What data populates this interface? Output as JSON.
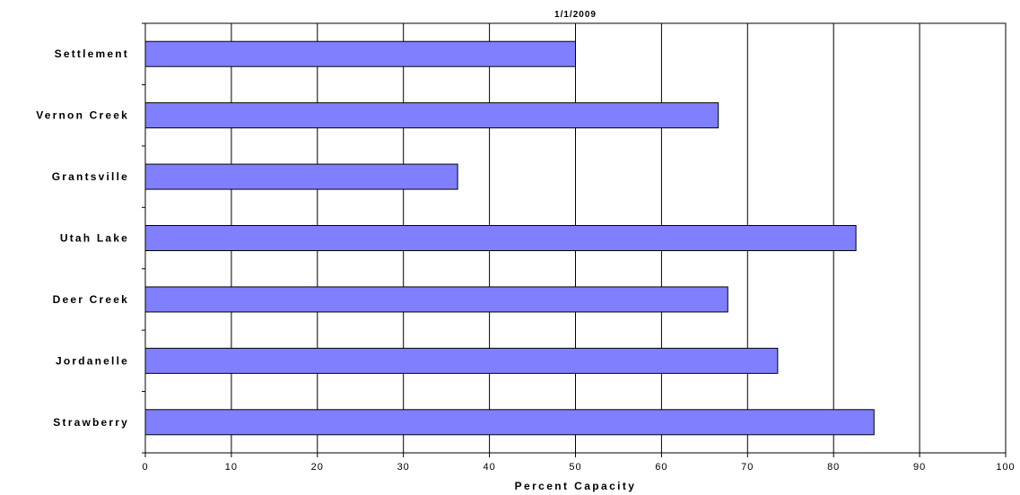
{
  "chart_data": {
    "type": "bar",
    "orientation": "horizontal",
    "title": "1/1/2009",
    "xlabel": "Percent Capacity",
    "ylabel": "",
    "xlim": [
      0,
      100
    ],
    "x_ticks": [
      "0",
      "10",
      "20",
      "30",
      "40",
      "50",
      "60",
      "70",
      "80",
      "90",
      "100"
    ],
    "grid": "vertical",
    "legend": "none",
    "bar_color": "#8080ff",
    "categories": [
      "Settlement",
      "Vernon Creek",
      "Grantsville",
      "Utah Lake",
      "Deer Creek",
      "Jordanelle",
      "Strawberry"
    ],
    "values": [
      50,
      66.6,
      36.3,
      82.6,
      67.7,
      73.5,
      84.7
    ]
  }
}
